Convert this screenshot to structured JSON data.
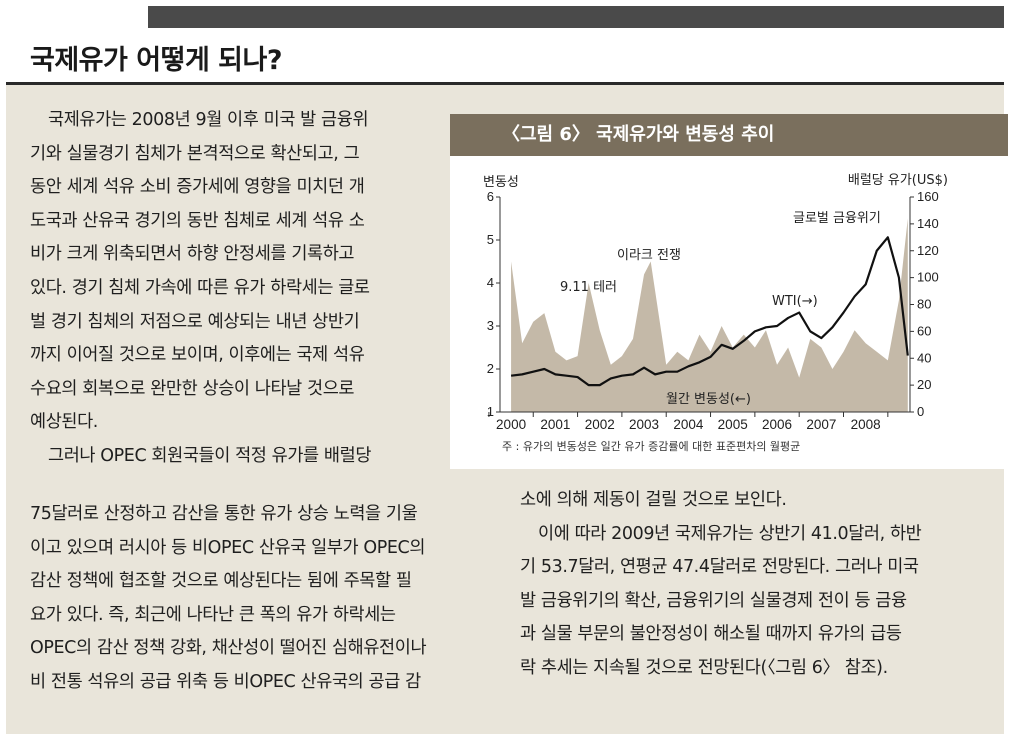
{
  "title": "국제유가 어떻게 되나?",
  "left_lines": [
    "국제유가는 2008년 9월 이후 미국 발 금융위",
    "기와 실물경기 침체가 본격적으로 확산되고, 그",
    "동안 세계 석유 소비 증가세에 영향을 미치던 개",
    "도국과 산유국 경기의 동반 침체로 세계 석유 소",
    "비가 크게 위축되면서 하향 안정세를 기록하고",
    "있다. 경기 침체 가속에 따른 유가 하락세는 글로",
    "벌 경기 침체의 저점으로 예상되는 내년 상반기",
    "까지 이어질 것으로 보이며, 이후에는 국제 석유",
    "수요의 회복으로 완만한 상승이 나타날 것으로",
    "예상된다.",
    "그러나 OPEC 회원국들이 적정 유가를 배럴당"
  ],
  "bottom_left_lines": [
    "75달러로 산정하고 감산을 통한 유가 상승 노력을 기울",
    "이고 있으며 러시아 등 비OPEC 산유국 일부가 OPEC의",
    "감산 정책에 협조할 것으로 예상된다는 뒴에 주목할 필",
    "요가 있다. 즉, 최근에 나타난 큰 폭의 유가 하락세는",
    "OPEC의 감산 정책 강화, 채산성이 떨어진 심해유전이나",
    "비 전통 석유의 공급 위축 등 비OPEC 산유국의 공급 감"
  ],
  "right_lines": [
    "소에 의해 제동이 걸릴 것으로 보인다.",
    "이에 따라 2009년 국제유가는 상반기 41.0달러, 하반",
    "기 53.7달러, 연평균 47.4달러로 전망된다. 그러나 미국",
    "발 금융위기의 확산, 금융위기의 실물경제 전이 등 금융",
    "과 실물 부문의 불안정성이 해소될 때까지 유가의 급등",
    "락 추세는 지속될 것으로 전망된다(〈그림 6〉 참조)."
  ],
  "figure": {
    "title": "〈그림 6〉 국제유가와 변동성 추이",
    "note": "주 : 유가의 변동성은 일간 유가 증감률에 대한 표준편차의 월평균"
  },
  "chart_data": {
    "type": "area+line",
    "ylabel_left": "변동성",
    "ylabel_right": "배럴당 유가(US$)",
    "y_left_ticks": [
      "1",
      "2",
      "3",
      "4",
      "5",
      "6"
    ],
    "y_right_ticks": [
      "0",
      "20",
      "40",
      "60",
      "80",
      "100",
      "120",
      "140",
      "160"
    ],
    "x_ticks": [
      "2000",
      "2001",
      "2002",
      "2003",
      "2004",
      "2005",
      "2006",
      "2007",
      "2008"
    ],
    "ylim_left": [
      1,
      6
    ],
    "ylim_right": [
      0,
      160
    ],
    "annotations": {
      "terror": "9.11 테러",
      "iraq": "이라크 전쟁",
      "crisis": "글로벌 금융위기",
      "wti": "WTI(→)",
      "vol": "월간 변동성(←)"
    },
    "series": [
      {
        "name": "월간 변동성(←)",
        "kind": "area",
        "color": "#c4b9a8",
        "x": [
          2000.0,
          2000.25,
          2000.5,
          2000.75,
          2001.0,
          2001.25,
          2001.5,
          2001.75,
          2002.0,
          2002.25,
          2002.5,
          2002.75,
          2003.0,
          2003.15,
          2003.5,
          2003.75,
          2004.0,
          2004.25,
          2004.5,
          2004.75,
          2005.0,
          2005.25,
          2005.5,
          2005.75,
          2006.0,
          2006.25,
          2006.5,
          2006.75,
          2007.0,
          2007.25,
          2007.5,
          2007.75,
          2008.0,
          2008.25,
          2008.5,
          2008.75,
          2008.95
        ],
        "values": [
          4.5,
          2.6,
          3.1,
          3.3,
          2.4,
          2.2,
          2.3,
          4.0,
          2.9,
          2.1,
          2.3,
          2.7,
          4.2,
          4.5,
          2.1,
          2.4,
          2.2,
          2.8,
          2.4,
          3.0,
          2.5,
          2.8,
          2.5,
          2.9,
          2.1,
          2.5,
          1.8,
          2.7,
          2.5,
          2.0,
          2.4,
          2.9,
          2.6,
          2.4,
          2.2,
          3.6,
          5.5
        ]
      },
      {
        "name": "WTI(→)",
        "kind": "line",
        "color": "#111111",
        "x": [
          2000.0,
          2000.25,
          2000.5,
          2000.75,
          2001.0,
          2001.25,
          2001.5,
          2001.75,
          2002.0,
          2002.25,
          2002.5,
          2002.75,
          2003.0,
          2003.25,
          2003.5,
          2003.75,
          2004.0,
          2004.25,
          2004.5,
          2004.75,
          2005.0,
          2005.25,
          2005.5,
          2005.75,
          2006.0,
          2006.25,
          2006.5,
          2006.75,
          2007.0,
          2007.25,
          2007.5,
          2007.75,
          2008.0,
          2008.25,
          2008.5,
          2008.75,
          2008.95
        ],
        "values": [
          27,
          28,
          30,
          32,
          28,
          27,
          26,
          20,
          20,
          25,
          27,
          28,
          33,
          28,
          30,
          30,
          34,
          37,
          41,
          50,
          47,
          53,
          60,
          63,
          64,
          70,
          74,
          60,
          55,
          63,
          74,
          86,
          95,
          120,
          130,
          100,
          42
        ]
      }
    ]
  }
}
